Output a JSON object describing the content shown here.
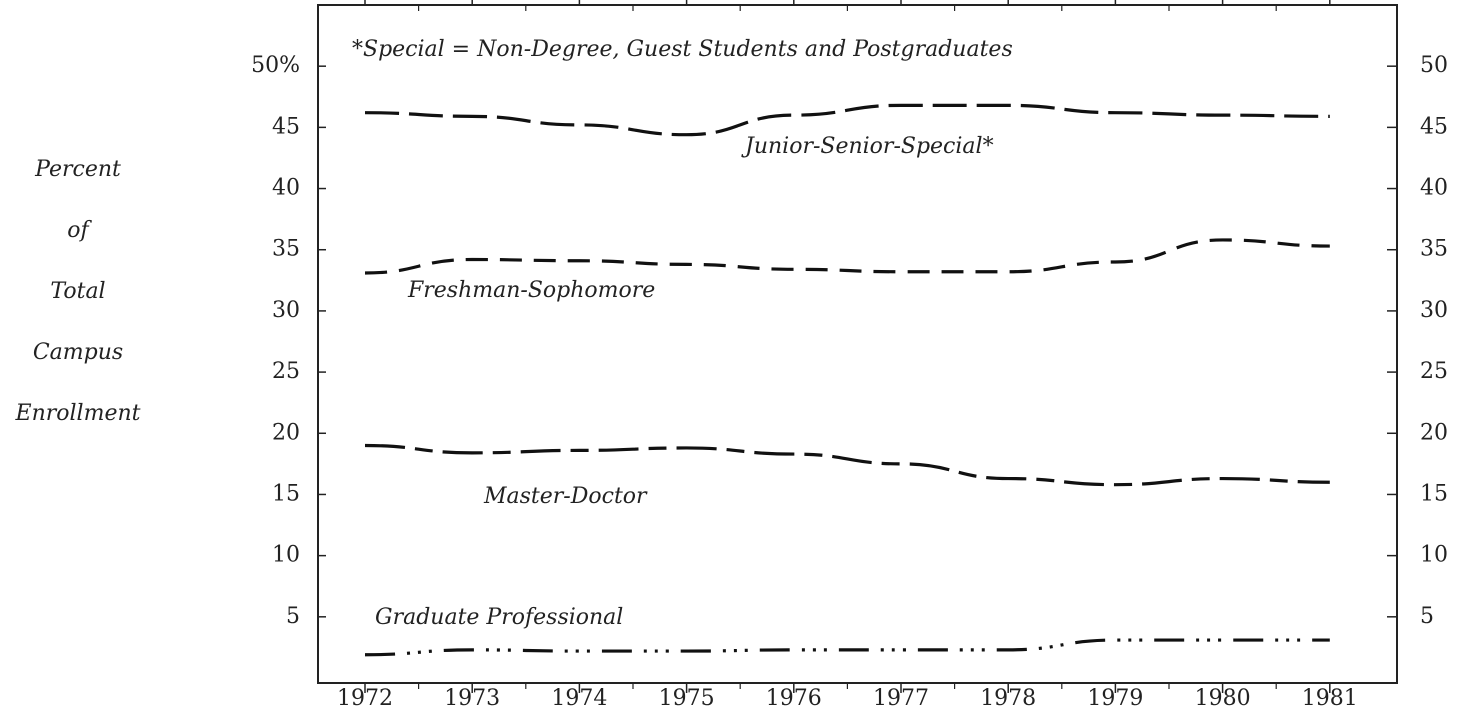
{
  "chart_data": {
    "type": "line",
    "annotation": "*Special = Non-Degree, Guest Students and Postgraduates",
    "y_label": [
      "Percent",
      "of",
      "Total",
      "Campus",
      "Enrollment"
    ],
    "categories": [
      "1972",
      "1973",
      "1974",
      "1975",
      "1976",
      "1977",
      "1978",
      "1979",
      "1980",
      "1981"
    ],
    "series": [
      {
        "name": "Junior-Senior-Special*",
        "color": "#111111",
        "dash": "long",
        "values": [
          46.2,
          45.9,
          45.2,
          44.4,
          46.0,
          46.8,
          46.8,
          46.2,
          46.0,
          45.9
        ]
      },
      {
        "name": "Freshman-Sophomore",
        "color": "#111111",
        "dash": "medium",
        "values": [
          33.1,
          34.2,
          34.1,
          33.8,
          33.4,
          33.2,
          33.2,
          34.0,
          35.8,
          35.3
        ]
      },
      {
        "name": "Master-Doctor",
        "color": "#111111",
        "dash": "long-short",
        "values": [
          19.0,
          18.4,
          18.6,
          18.8,
          18.3,
          17.5,
          16.3,
          15.8,
          16.3,
          16.0
        ]
      },
      {
        "name": "Graduate Professional",
        "color": "#111111",
        "dash": "dash-dot",
        "values": [
          1.9,
          2.3,
          2.2,
          2.2,
          2.3,
          2.3,
          2.3,
          3.1,
          3.1,
          3.1
        ]
      }
    ],
    "ylim": [
      0,
      55
    ],
    "yticks": [
      5,
      10,
      15,
      20,
      25,
      30,
      35,
      40,
      45,
      {
        "value": 50,
        "label": "50%"
      }
    ],
    "y2lim": [
      0,
      55
    ],
    "y2ticks": [
      5,
      10,
      15,
      20,
      25,
      30,
      35,
      40,
      45,
      50
    ],
    "grid": false
  }
}
